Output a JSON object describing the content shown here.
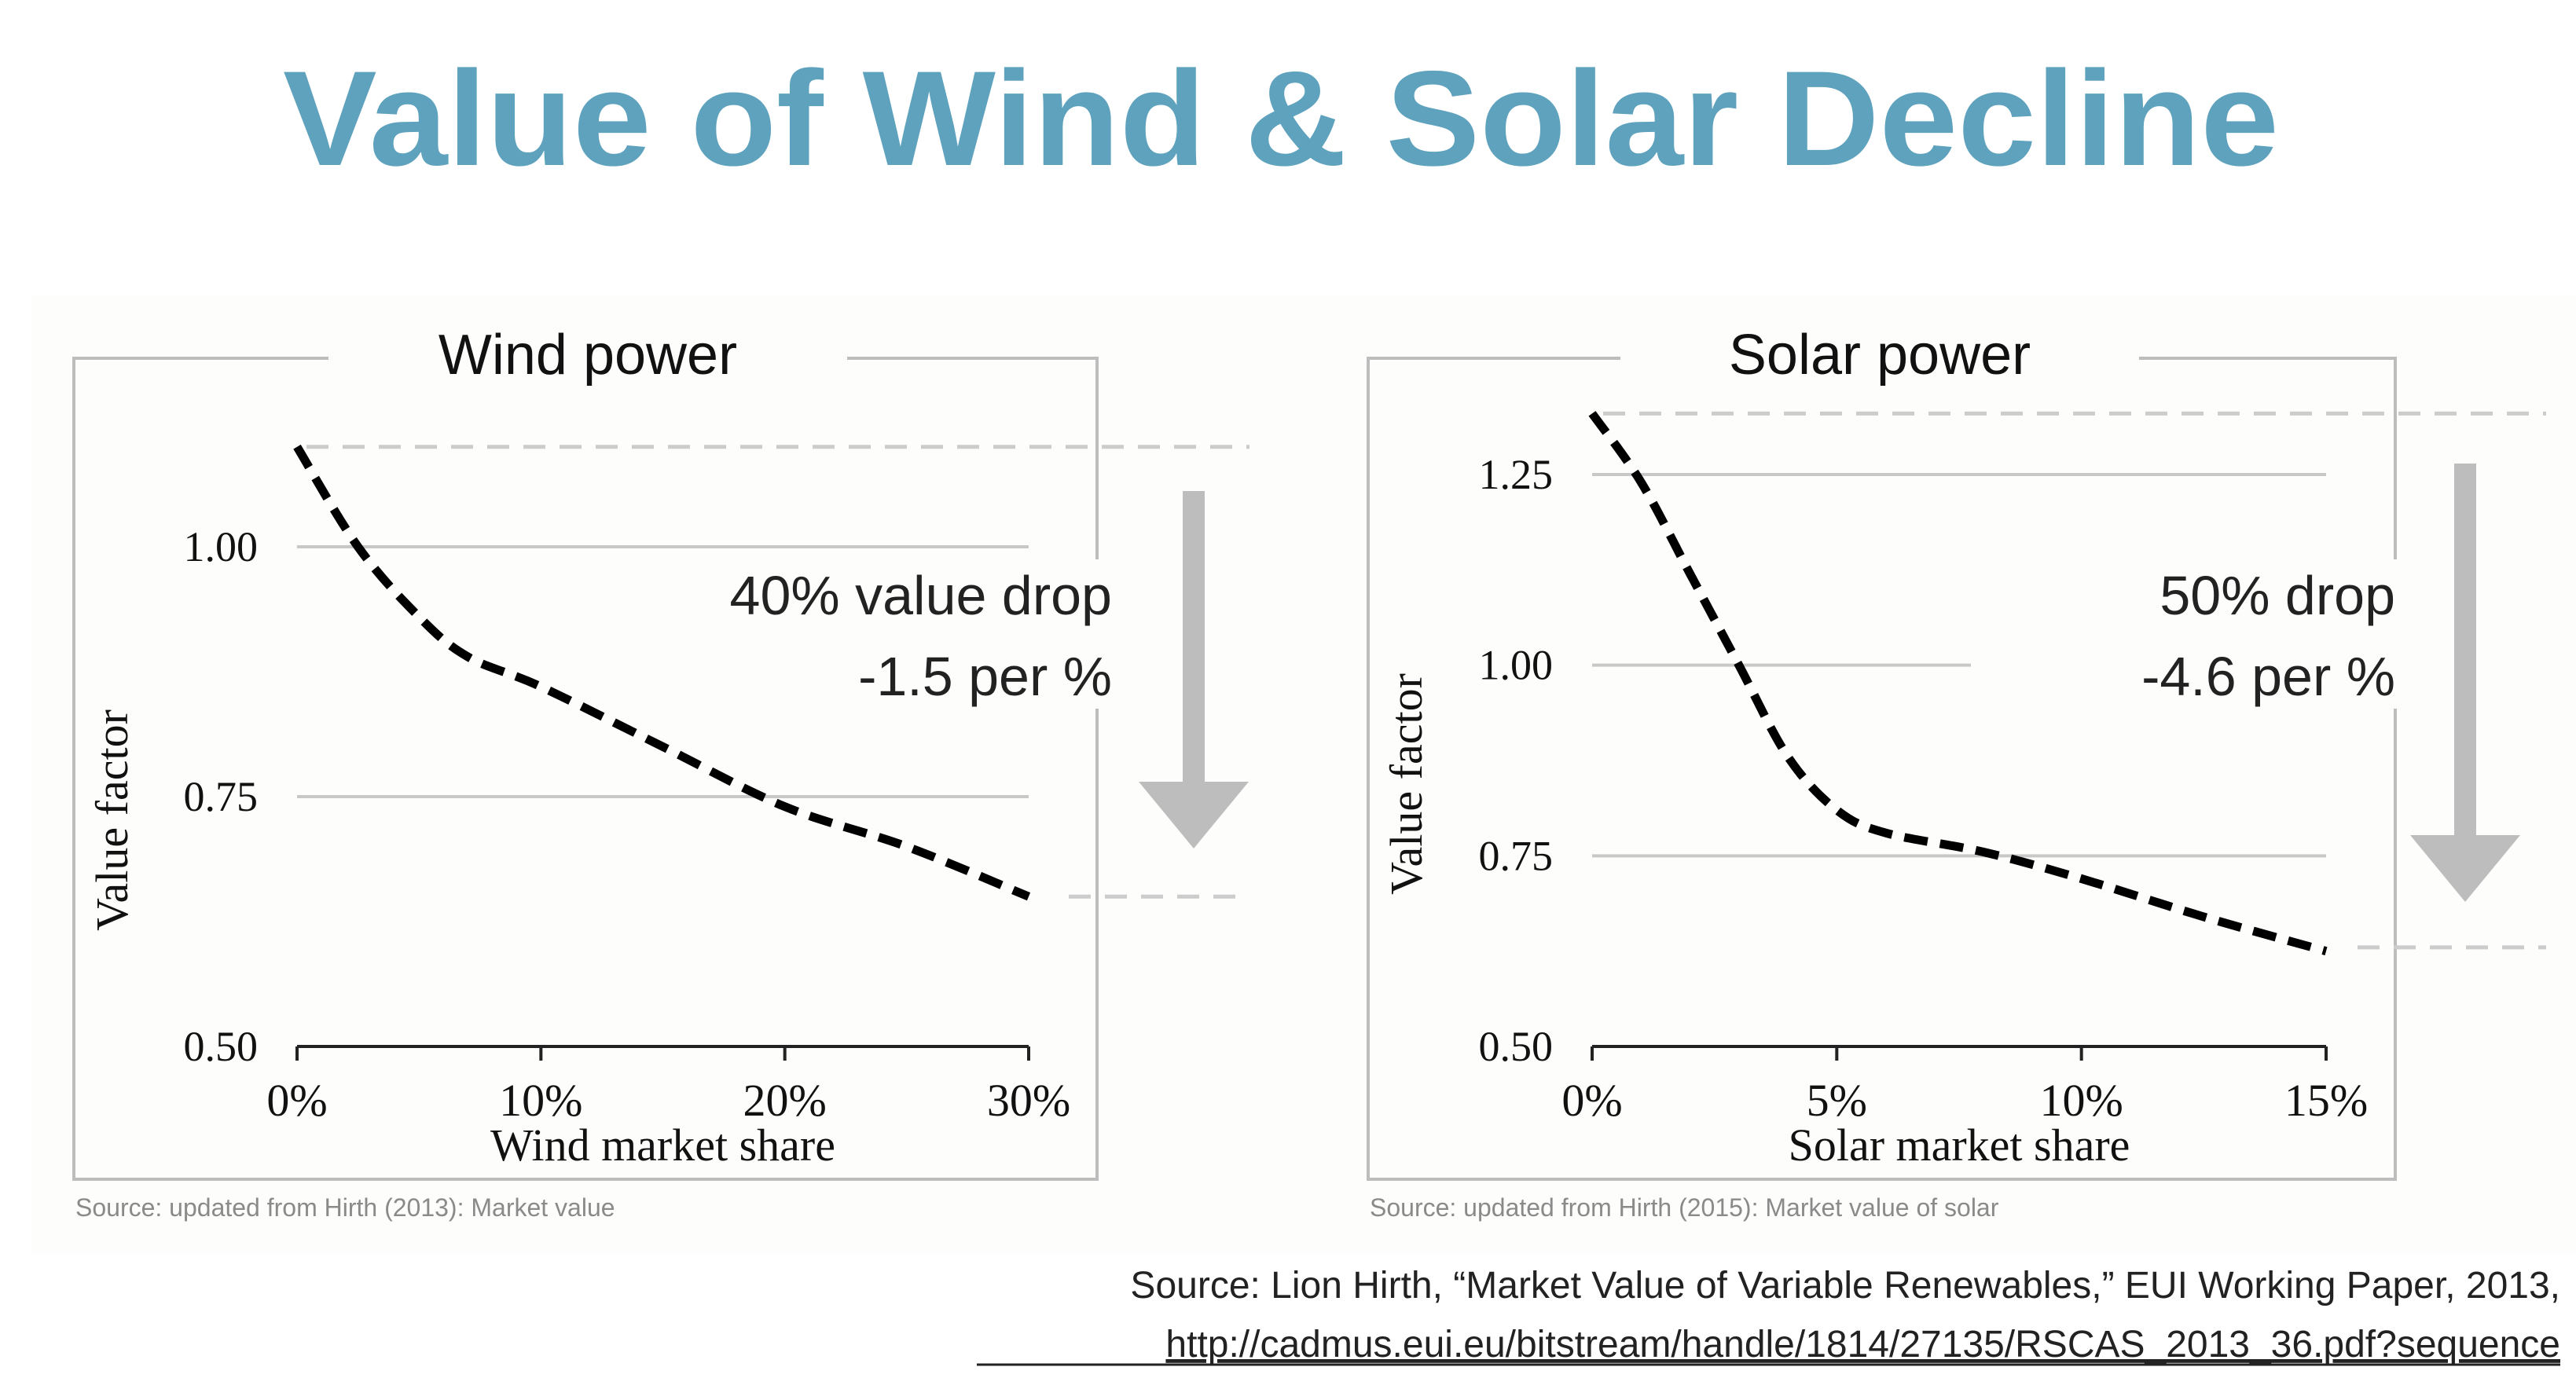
{
  "title": "Value of Wind & Solar Decline",
  "colors": {
    "title": "#5ea2bd",
    "arrow": "#bdbdbd",
    "curve": "#000000",
    "reference": "#cccccc"
  },
  "chart_data": [
    {
      "type": "line",
      "title": "Wind power",
      "xlabel": "Wind market share",
      "ylabel": "Value factor",
      "xlim": [
        0,
        30
      ],
      "ylim": [
        0.5,
        1.15
      ],
      "x_ticks": [
        0,
        10,
        20,
        30
      ],
      "x_tick_labels": [
        "0%",
        "10%",
        "20%",
        "30%"
      ],
      "y_ticks": [
        0.5,
        0.75,
        1.0
      ],
      "y_tick_labels": [
        "0.50",
        "0.75",
        "1.00"
      ],
      "grid": true,
      "line_style": "dashed",
      "x": [
        0,
        2.5,
        5,
        7,
        10,
        15,
        20,
        25,
        30
      ],
      "y": [
        1.1,
        1.0,
        0.93,
        0.89,
        0.86,
        0.8,
        0.74,
        0.7,
        0.65
      ],
      "reference_levels": [
        1.1,
        0.65
      ],
      "annotation": [
        "40% value drop",
        "-1.5 per %"
      ],
      "source": "Source: updated from Hirth (2013): Market value"
    },
    {
      "type": "line",
      "title": "Solar power",
      "xlabel": "Solar market share",
      "ylabel": "Value factor",
      "xlim": [
        0,
        15
      ],
      "ylim": [
        0.5,
        1.35
      ],
      "x_ticks": [
        0,
        5,
        10,
        15
      ],
      "x_tick_labels": [
        "0%",
        "5%",
        "10%",
        "15%"
      ],
      "y_ticks": [
        0.5,
        0.75,
        1.0,
        1.25
      ],
      "y_tick_labels": [
        "0.50",
        "0.75",
        "1.00",
        "1.25"
      ],
      "grid": true,
      "line_style": "dashed",
      "x": [
        0,
        1,
        2,
        3,
        4,
        5,
        6,
        8,
        10,
        12.5,
        15
      ],
      "y": [
        1.33,
        1.24,
        1.12,
        1.0,
        0.88,
        0.81,
        0.78,
        0.755,
        0.72,
        0.67,
        0.625
      ],
      "reference_levels": [
        1.33,
        0.63
      ],
      "annotation": [
        "50% drop",
        "-4.6 per %"
      ],
      "source": "Source: updated from Hirth (2015): Market value of solar"
    }
  ],
  "footer": {
    "source": "Source: Lion Hirth, “Market Value of Variable Renewables,”  EUI Working Paper, 2013,",
    "link": "http://cadmus.eui.eu/bitstream/handle/1814/27135/RSCAS_2013_36.pdf?sequence"
  }
}
